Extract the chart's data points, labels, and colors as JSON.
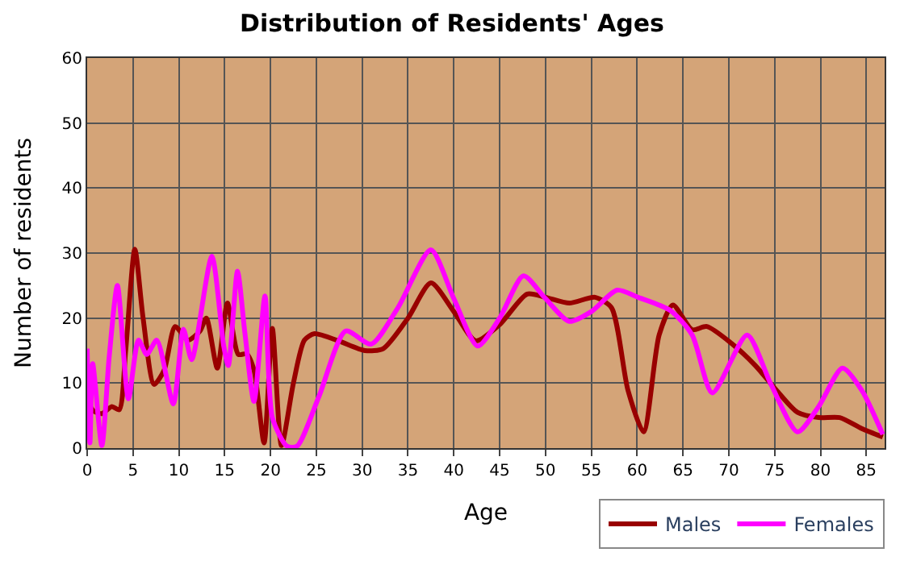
{
  "chart_data": {
    "type": "line",
    "title": "Distribution of Residents' Ages",
    "xlabel": "Age",
    "ylabel": "Number of residents",
    "xlim": [
      0,
      87
    ],
    "ylim": [
      0,
      60
    ],
    "xticks": [
      0,
      5,
      10,
      15,
      20,
      25,
      30,
      35,
      40,
      45,
      50,
      55,
      60,
      65,
      70,
      75,
      80,
      85
    ],
    "yticks": [
      0,
      10,
      20,
      30,
      40,
      50,
      60
    ],
    "grid": true,
    "legend": "bottom right",
    "marker": "none",
    "line_style": "solid",
    "series": [
      {
        "name": "Males",
        "color": "#990000",
        "x": [
          0,
          0.3,
          0.7,
          1.6,
          2.7,
          3.5,
          4.2,
          5.2,
          6.1,
          7.3,
          8.4,
          9.6,
          11,
          12.3,
          13,
          14.2,
          15.3,
          16.5,
          17.4,
          18.2,
          19.3,
          20.2,
          21.2,
          22.5,
          23.7,
          24.8,
          27.4,
          30.3,
          32.3,
          35,
          37.5,
          40,
          42.4,
          45,
          48,
          50,
          52.6,
          55.4,
          57.2,
          59,
          60.7,
          62.4,
          63.9,
          66,
          67.6,
          70.3,
          72.9,
          75.2,
          77.5,
          79.8,
          82.1,
          84.5,
          86.8
        ],
        "values": [
          6,
          6.4,
          5.7,
          5.3,
          6.4,
          5.9,
          15,
          30.6,
          20,
          9.8,
          12,
          18.7,
          16.6,
          18,
          20,
          12.3,
          22.3,
          14.4,
          14.5,
          12,
          0.8,
          18.4,
          0.4,
          10,
          16.6,
          17.6,
          16.5,
          15,
          15.3,
          20,
          25.4,
          21,
          16.5,
          19,
          23.7,
          23.2,
          22.3,
          23.2,
          21.6,
          8.9,
          2.5,
          17.4,
          22,
          18.2,
          18.7,
          16.1,
          12.7,
          8.9,
          5.5,
          4.7,
          4.7,
          3,
          1.7
        ]
      },
      {
        "name": "Females",
        "color": "#ff00ff",
        "x": [
          0,
          0.3,
          0.6,
          1.6,
          2.4,
          3.3,
          4.5,
          5.6,
          6.5,
          7.6,
          9.4,
          10.5,
          11.4,
          13.6,
          14.9,
          15.4,
          16.4,
          17.2,
          18.2,
          19.4,
          20.2,
          21.8,
          22.9,
          25.3,
          28.2,
          31,
          33.9,
          37.5,
          40,
          42.6,
          45,
          47.6,
          50,
          52.6,
          55,
          57.8,
          60.1,
          63.6,
          66,
          68.2,
          72,
          74.6,
          77.5,
          79.8,
          82.4,
          84.5,
          86.8
        ],
        "values": [
          15.3,
          0.8,
          13,
          0.4,
          14,
          25,
          7.6,
          16.6,
          14.4,
          16.6,
          6.8,
          18.3,
          13.6,
          29.5,
          15.7,
          12.7,
          27.2,
          17.8,
          7.2,
          23.4,
          4.7,
          0.3,
          0.3,
          8,
          18,
          16,
          21.6,
          30.5,
          23,
          15.7,
          20,
          26.5,
          23,
          19.5,
          21,
          24.3,
          23.2,
          21.2,
          17.4,
          8.5,
          17.4,
          9.8,
          2.5,
          6.4,
          12.3,
          8.9,
          2.1
        ]
      }
    ]
  }
}
